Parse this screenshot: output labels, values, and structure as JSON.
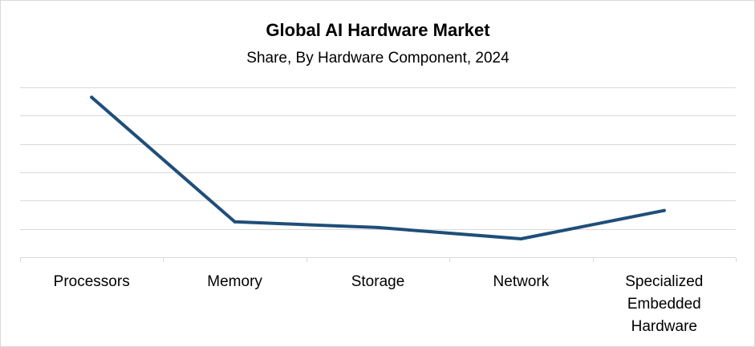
{
  "chart_data": {
    "type": "line",
    "title": "Global AI Hardware Market",
    "subtitle": "Share, By Hardware Component, 2024",
    "xlabel": "",
    "ylabel": "",
    "categories": [
      [
        "Processors"
      ],
      [
        "Memory"
      ],
      [
        "Storage"
      ],
      [
        "Network"
      ],
      [
        "Specialized",
        "Embedded",
        "Hardware"
      ]
    ],
    "series": [
      {
        "name": "Share",
        "color": "#1f4e79",
        "values": [
          56.5,
          12.5,
          10.5,
          6.5,
          16.5
        ]
      }
    ],
    "ylim": [
      0,
      60
    ],
    "y_gridline_step": 10,
    "y_tick_labels_visible": false,
    "grid": true,
    "legend": "none"
  }
}
